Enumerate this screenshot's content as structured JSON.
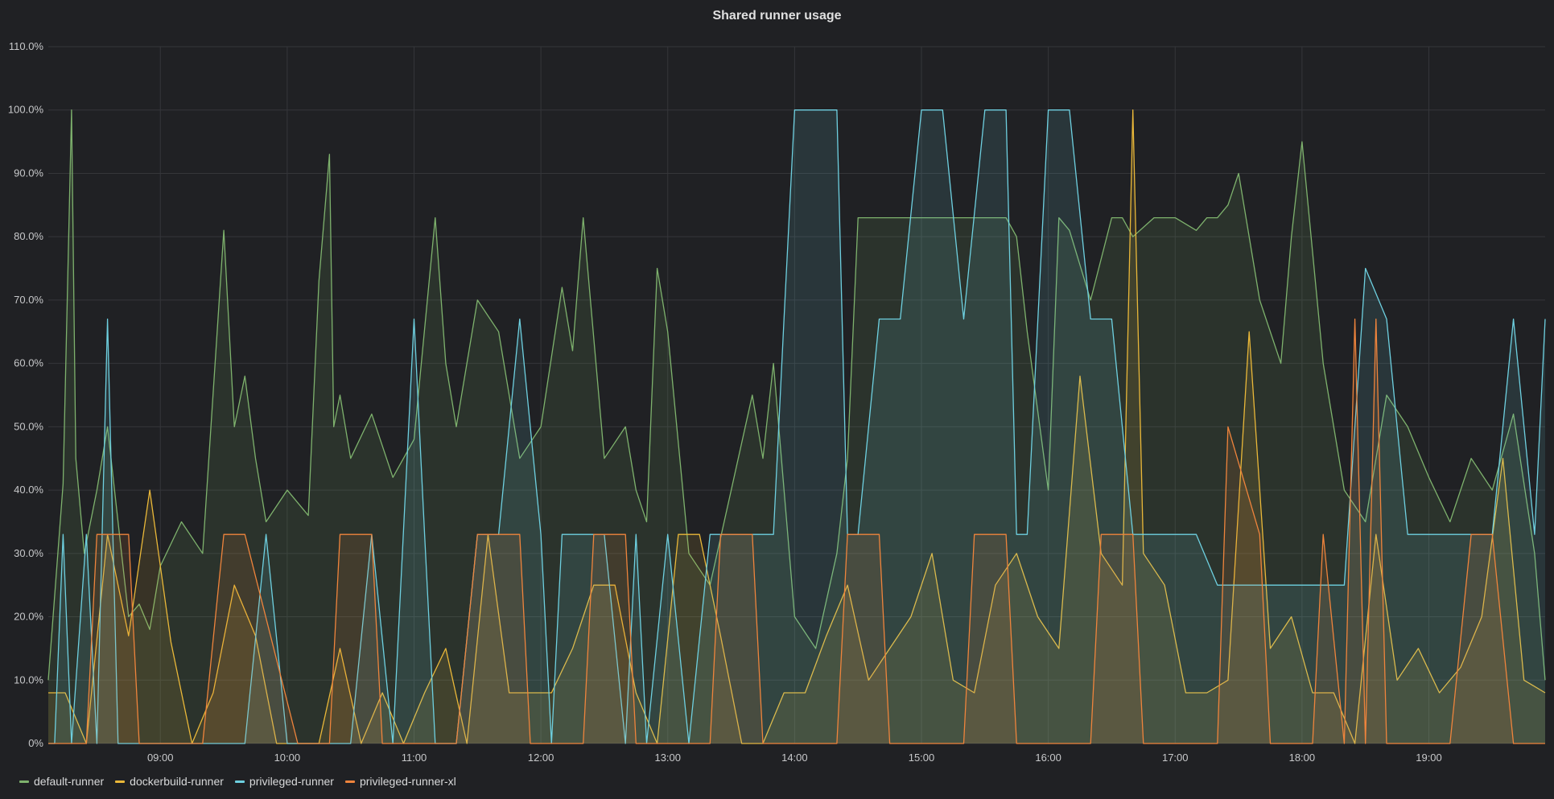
{
  "panel": {
    "title": "Shared runner usage"
  },
  "chart_data": {
    "type": "line",
    "title": "Shared runner usage",
    "x_range": [
      "08:07",
      "19:55"
    ],
    "ylim": [
      0,
      110
    ],
    "y_ticks": [
      "0%",
      "10.0%",
      "20.0%",
      "30.0%",
      "40.0%",
      "50.0%",
      "60.0%",
      "70.0%",
      "80.0%",
      "90.0%",
      "100.0%",
      "110.0%"
    ],
    "x_ticks": [
      "09:00",
      "10:00",
      "11:00",
      "12:00",
      "13:00",
      "14:00",
      "15:00",
      "16:00",
      "17:00",
      "18:00",
      "19:00"
    ],
    "grid": true,
    "legend_position": "bottom-left",
    "series": [
      {
        "name": "default-runner",
        "color": "#7eb26d",
        "x": [
          "08:07",
          "08:14",
          "08:18",
          "08:20",
          "08:24",
          "08:30",
          "08:35",
          "08:40",
          "08:45",
          "08:50",
          "08:55",
          "09:00",
          "09:10",
          "09:20",
          "09:30",
          "09:35",
          "09:40",
          "09:45",
          "09:50",
          "10:00",
          "10:10",
          "10:15",
          "10:20",
          "10:22",
          "10:25",
          "10:30",
          "10:40",
          "10:50",
          "11:00",
          "11:10",
          "11:15",
          "11:20",
          "11:30",
          "11:40",
          "11:45",
          "11:50",
          "12:00",
          "12:10",
          "12:15",
          "12:20",
          "12:30",
          "12:40",
          "12:45",
          "12:50",
          "12:55",
          "13:00",
          "13:10",
          "13:20",
          "13:30",
          "13:40",
          "13:45",
          "13:50",
          "14:00",
          "14:10",
          "14:20",
          "14:25",
          "14:30",
          "14:40",
          "14:50",
          "15:00",
          "15:10",
          "15:20",
          "15:30",
          "15:40",
          "15:45",
          "15:50",
          "16:00",
          "16:05",
          "16:10",
          "16:20",
          "16:30",
          "16:35",
          "16:40",
          "16:50",
          "17:00",
          "17:10",
          "17:15",
          "17:20",
          "17:25",
          "17:30",
          "17:40",
          "17:50",
          "17:55",
          "18:00",
          "18:10",
          "18:20",
          "18:30",
          "18:40",
          "18:50",
          "19:00",
          "19:10",
          "19:20",
          "19:30",
          "19:40",
          "19:50",
          "19:55"
        ],
        "values": [
          10,
          41,
          100,
          45,
          30,
          40,
          50,
          35,
          20,
          22,
          18,
          28,
          35,
          30,
          81,
          50,
          58,
          45,
          35,
          40,
          36,
          73,
          93,
          50,
          55,
          45,
          52,
          42,
          48,
          83,
          60,
          50,
          70,
          65,
          55,
          45,
          50,
          72,
          62,
          83,
          45,
          50,
          40,
          35,
          75,
          65,
          30,
          25,
          40,
          55,
          45,
          60,
          20,
          15,
          30,
          45,
          83,
          83,
          83,
          83,
          83,
          83,
          83,
          83,
          80,
          65,
          40,
          83,
          81,
          70,
          83,
          83,
          80,
          83,
          83,
          81,
          83,
          83,
          85,
          90,
          70,
          60,
          80,
          95,
          60,
          40,
          35,
          55,
          50,
          42,
          35,
          45,
          40,
          52,
          30,
          10
        ]
      },
      {
        "name": "dockerbuild-runner",
        "color": "#eab839",
        "x": [
          "08:07",
          "08:15",
          "08:25",
          "08:35",
          "08:45",
          "08:55",
          "09:05",
          "09:15",
          "09:25",
          "09:35",
          "09:45",
          "09:55",
          "10:05",
          "10:15",
          "10:25",
          "10:35",
          "10:45",
          "10:55",
          "11:05",
          "11:15",
          "11:25",
          "11:35",
          "11:45",
          "11:55",
          "12:05",
          "12:15",
          "12:25",
          "12:35",
          "12:45",
          "12:55",
          "13:05",
          "13:15",
          "13:25",
          "13:35",
          "13:45",
          "13:55",
          "14:05",
          "14:15",
          "14:25",
          "14:35",
          "14:45",
          "14:55",
          "15:05",
          "15:15",
          "15:25",
          "15:35",
          "15:45",
          "15:55",
          "16:05",
          "16:15",
          "16:25",
          "16:35",
          "16:40",
          "16:45",
          "16:55",
          "17:05",
          "17:15",
          "17:25",
          "17:35",
          "17:45",
          "17:55",
          "18:05",
          "18:15",
          "18:25",
          "18:35",
          "18:45",
          "18:55",
          "19:05",
          "19:15",
          "19:25",
          "19:35",
          "19:45",
          "19:55"
        ],
        "values": [
          8,
          8,
          0,
          33,
          17,
          40,
          16,
          0,
          8,
          25,
          17,
          0,
          0,
          0,
          15,
          0,
          8,
          0,
          8,
          15,
          0,
          33,
          8,
          8,
          8,
          15,
          25,
          25,
          8,
          0,
          33,
          33,
          17,
          0,
          0,
          8,
          8,
          17,
          25,
          10,
          15,
          20,
          30,
          10,
          8,
          25,
          30,
          20,
          15,
          58,
          30,
          25,
          100,
          30,
          25,
          8,
          8,
          10,
          65,
          15,
          20,
          8,
          8,
          0,
          33,
          10,
          15,
          8,
          12,
          20,
          45,
          10,
          8
        ]
      },
      {
        "name": "privileged-runner",
        "color": "#6ed0e0",
        "x": [
          "08:07",
          "08:10",
          "08:14",
          "08:18",
          "08:25",
          "08:30",
          "08:35",
          "08:40",
          "08:45",
          "08:50",
          "09:00",
          "09:10",
          "09:20",
          "09:30",
          "09:40",
          "09:50",
          "10:00",
          "10:10",
          "10:20",
          "10:30",
          "10:40",
          "10:50",
          "11:00",
          "11:05",
          "11:10",
          "11:20",
          "11:30",
          "11:40",
          "11:50",
          "12:00",
          "12:05",
          "12:10",
          "12:20",
          "12:30",
          "12:40",
          "12:45",
          "12:50",
          "13:00",
          "13:10",
          "13:20",
          "13:30",
          "13:40",
          "13:50",
          "13:55",
          "14:00",
          "14:10",
          "14:20",
          "14:25",
          "14:30",
          "14:40",
          "14:50",
          "15:00",
          "15:10",
          "15:20",
          "15:30",
          "15:40",
          "15:45",
          "15:50",
          "16:00",
          "16:10",
          "16:20",
          "16:30",
          "16:40",
          "16:50",
          "17:00",
          "17:10",
          "17:20",
          "17:30",
          "17:40",
          "17:50",
          "18:00",
          "18:10",
          "18:20",
          "18:25",
          "18:30",
          "18:40",
          "18:50",
          "19:00",
          "19:10",
          "19:20",
          "19:30",
          "19:40",
          "19:50",
          "19:55"
        ],
        "values": [
          0,
          0,
          33,
          0,
          33,
          0,
          67,
          0,
          0,
          0,
          0,
          0,
          0,
          0,
          0,
          33,
          0,
          0,
          0,
          0,
          33,
          0,
          67,
          33,
          0,
          0,
          33,
          33,
          67,
          33,
          0,
          33,
          33,
          33,
          0,
          33,
          0,
          33,
          0,
          33,
          33,
          33,
          33,
          67,
          100,
          100,
          100,
          33,
          33,
          67,
          67,
          100,
          100,
          67,
          100,
          100,
          33,
          33,
          100,
          100,
          67,
          67,
          33,
          33,
          33,
          33,
          25,
          25,
          25,
          25,
          25,
          25,
          25,
          50,
          75,
          67,
          33,
          33,
          33,
          33,
          33,
          67,
          33,
          67
        ]
      },
      {
        "name": "privileged-runner-xl",
        "color": "#ef843c",
        "x": [
          "08:07",
          "08:25",
          "08:30",
          "08:45",
          "08:50",
          "09:20",
          "09:30",
          "09:40",
          "10:05",
          "10:20",
          "10:25",
          "10:40",
          "10:45",
          "11:20",
          "11:30",
          "11:50",
          "11:55",
          "12:20",
          "12:25",
          "12:40",
          "12:45",
          "13:20",
          "13:25",
          "13:40",
          "13:45",
          "14:20",
          "14:25",
          "14:40",
          "14:45",
          "15:20",
          "15:25",
          "15:40",
          "15:45",
          "16:20",
          "16:25",
          "16:40",
          "16:45",
          "17:20",
          "17:25",
          "17:40",
          "17:45",
          "18:05",
          "18:10",
          "18:20",
          "18:25",
          "18:30",
          "18:35",
          "18:40",
          "18:50",
          "19:10",
          "19:20",
          "19:30",
          "19:40",
          "19:55"
        ],
        "values": [
          0,
          0,
          33,
          33,
          0,
          0,
          33,
          33,
          0,
          0,
          33,
          33,
          0,
          0,
          33,
          33,
          0,
          0,
          33,
          33,
          0,
          0,
          33,
          33,
          0,
          0,
          33,
          33,
          0,
          0,
          33,
          33,
          0,
          0,
          33,
          33,
          0,
          0,
          50,
          33,
          0,
          0,
          33,
          0,
          67,
          0,
          67,
          0,
          0,
          0,
          33,
          33,
          0,
          0
        ]
      }
    ]
  },
  "legend": [
    {
      "label": "default-runner",
      "color": "#7eb26d"
    },
    {
      "label": "dockerbuild-runner",
      "color": "#eab839"
    },
    {
      "label": "privileged-runner",
      "color": "#6ed0e0"
    },
    {
      "label": "privileged-runner-xl",
      "color": "#ef843c"
    }
  ]
}
